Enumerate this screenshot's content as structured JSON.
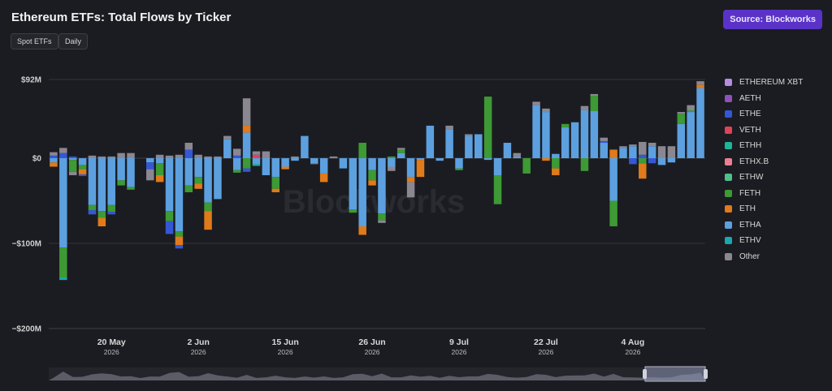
{
  "header": {
    "title": "Ethereum ETFs: Total Flows by Ticker",
    "tags": [
      "Spot ETFs",
      "Daily"
    ],
    "source_label": "Source: Blockworks"
  },
  "watermark": "Blockworks",
  "chart_data": {
    "type": "bar",
    "stacked": true,
    "ylim": [
      -200,
      92
    ],
    "yticks": [
      {
        "value": 92,
        "label": "$92M"
      },
      {
        "value": 0,
        "label": "$0"
      },
      {
        "value": -100,
        "label": "−$100M"
      },
      {
        "value": -200,
        "label": "−$200M"
      }
    ],
    "xticks": [
      {
        "index": 6,
        "label": "20 May",
        "sub": "2026"
      },
      {
        "index": 15,
        "label": "2 Jun",
        "sub": "2026"
      },
      {
        "index": 24,
        "label": "15 Jun",
        "sub": "2026"
      },
      {
        "index": 33,
        "label": "26 Jun",
        "sub": "2026"
      },
      {
        "index": 42,
        "label": "9 Jul",
        "sub": "2026"
      },
      {
        "index": 51,
        "label": "22 Jul",
        "sub": "2026"
      },
      {
        "index": 60,
        "label": "4 Aug",
        "sub": "2026"
      }
    ],
    "legend_position": "right",
    "series": [
      {
        "name": "ETHEREUM XBT",
        "color": "#b48de0"
      },
      {
        "name": "AETH",
        "color": "#8e52b8"
      },
      {
        "name": "ETHE",
        "color": "#3557d6"
      },
      {
        "name": "VETH",
        "color": "#e04357"
      },
      {
        "name": "ETHH",
        "color": "#1fb59a"
      },
      {
        "name": "ETHX.B",
        "color": "#ea7f93"
      },
      {
        "name": "ETHW",
        "color": "#4fbf8e"
      },
      {
        "name": "FETH",
        "color": "#3d9a34"
      },
      {
        "name": "ETH",
        "color": "#e07a1a"
      },
      {
        "name": "ETHA",
        "color": "#5ca0e0"
      },
      {
        "name": "ETHV",
        "color": "#1ba6b0"
      },
      {
        "name": "Other",
        "color": "#8b8791"
      }
    ],
    "days": [
      {
        "ETHA": -5,
        "ETH": -5,
        "ETHE": 3,
        "Other": 4
      },
      {
        "ETHA": -105,
        "FETH": -35,
        "ETHV": -3,
        "ETHE": 6,
        "Other": 6
      },
      {
        "ETHA": -2,
        "FETH": -14,
        "ETHE": 2,
        "Other": -4
      },
      {
        "ETHA": -8,
        "ETH": -6,
        "FETH": -5,
        "ETHE": -2
      },
      {
        "ETHA": -55,
        "ETHE": -5,
        "FETH": -6,
        "Other": 3
      },
      {
        "ETHA": -62,
        "ETH": -10,
        "FETH": -8,
        "Other": 2
      },
      {
        "ETHA": -55,
        "FETH": -8,
        "ETHE": -3,
        "Other": 2
      },
      {
        "ETHA": -26,
        "FETH": -6,
        "Other": 6
      },
      {
        "ETHA": -34,
        "FETH": -3,
        "Other": 6
      },
      {
        "Other": 0
      },
      {
        "Other": -13,
        "ETHA": -5,
        "ETHE": -8
      },
      {
        "ETHA": -6,
        "ETH": -8,
        "FETH": -14,
        "Other": 4
      },
      {
        "ETHA": -62,
        "ETHE": -15,
        "FETH": -12,
        "Other": 3
      },
      {
        "ETHA": -86,
        "ETH": -10,
        "FETH": -6,
        "ETHE": -4,
        "Other": 4
      },
      {
        "ETHA": -32,
        "FETH": -8,
        "Other": 8,
        "ETHE": 10
      },
      {
        "ETHA": -22,
        "ETH": -6,
        "FETH": -8,
        "Other": 4
      },
      {
        "ETHA": -52,
        "ETH": -22,
        "FETH": -10,
        "Other": 2
      },
      {
        "ETHA": -48,
        "Other": 2
      },
      {
        "ETHA": 22,
        "Other": 4
      },
      {
        "ETHA": -14,
        "FETH": -3,
        "ETHE": 3,
        "Other": 8
      },
      {
        "ETHA": 30,
        "FETH": -12,
        "ETHE": -4,
        "Other": 32,
        "ETH": 8
      },
      {
        "ETHA": -7,
        "VETH": 4,
        "ETHH": -2,
        "Other": 4
      },
      {
        "ETHA": -20,
        "Other": 8
      },
      {
        "ETHA": -22,
        "FETH": -14,
        "ETH": -4
      },
      {
        "ETHA": -10,
        "ETH": -3
      },
      {
        "ETHA": -3,
        "Other": 2
      },
      {
        "ETHA": 26
      },
      {
        "ETHA": -6,
        "Other": -1
      },
      {
        "ETHA": -18,
        "ETH": -10
      },
      {
        "Other": 2
      },
      {
        "ETHA": -12
      },
      {
        "ETHA": -60,
        "FETH": -4
      },
      {
        "ETHA": -80,
        "ETH": -10,
        "FETH": 18
      },
      {
        "ETHA": -14,
        "FETH": -12,
        "ETH": -6
      },
      {
        "ETHA": -65,
        "FETH": -8,
        "Other": -3
      },
      {
        "ETHA": -10,
        "Other": -5,
        "FETH": 2
      },
      {
        "ETHA": 6,
        "FETH": 4,
        "Other": 2
      },
      {
        "Other": -18,
        "ETHA": -22,
        "ETH": -6
      },
      {
        "ETHA": -2,
        "ETH": -20
      },
      {
        "ETHA": 38
      },
      {
        "ETHA": -3
      },
      {
        "ETHA": 34,
        "Other": 4
      },
      {
        "ETHA": -12,
        "FETH": -2
      },
      {
        "ETHA": 26,
        "Other": 2
      },
      {
        "ETHA": 28
      },
      {
        "FETH": 72,
        "ETHA": -2
      },
      {
        "ETHA": -20,
        "FETH": -34
      },
      {
        "ETHA": 18
      },
      {
        "ETHA": 2,
        "Other": 4
      },
      {
        "FETH": -18
      },
      {
        "ETHA": 62,
        "Other": 4
      },
      {
        "ETHA": 54,
        "ETH": -3,
        "Other": 4
      },
      {
        "ETH": -8,
        "FETH": -12,
        "ETHA": 5
      },
      {
        "ETHA": 36,
        "FETH": 4
      },
      {
        "ETHA": 42
      },
      {
        "ETHA": 56,
        "Other": 5,
        "FETH": -15
      },
      {
        "ETHA": 55,
        "FETH": 18,
        "Other": 2
      },
      {
        "ETHA": 18,
        "Other": 4,
        "ETHE": 2
      },
      {
        "ETHA": -50,
        "FETH": -30,
        "ETH": 10
      },
      {
        "ETHA": 12,
        "Other": 2
      },
      {
        "ETHA": 14,
        "Other": 2,
        "ETHE": -7
      },
      {
        "Other": 15,
        "ETH": -18,
        "FETH": -6,
        "ETHE": 4
      },
      {
        "ETHA": 14,
        "Other": 4,
        "ETHE": -6
      },
      {
        "ETHA": -8,
        "Other": 14
      },
      {
        "Other": 14,
        "ETHA": -5
      },
      {
        "ETHA": 40,
        "FETH": 12,
        "Other": 2
      },
      {
        "ETHA": 54,
        "Other": 6,
        "FETH": 2
      },
      {
        "ETHA": 82,
        "ETH": 4,
        "Other": 4
      }
    ]
  },
  "navigator": {
    "label": "date range navigator"
  }
}
